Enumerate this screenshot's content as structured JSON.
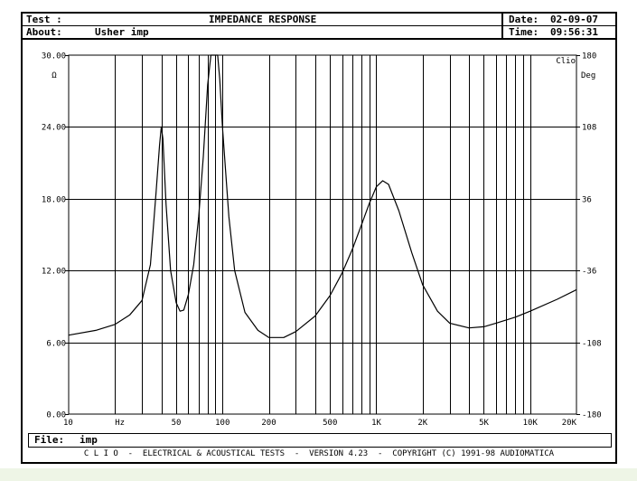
{
  "header": {
    "test_label": "Test :",
    "title": "IMPEDANCE RESPONSE",
    "about_label": "About:",
    "about_value": "Usher imp",
    "date_label": "Date:",
    "date_value": "02-09-07",
    "time_label": "Time:",
    "time_value": "09:56:31"
  },
  "file": {
    "label": "File:",
    "value": "imp"
  },
  "footer": "C L I O  -  ELECTRICAL & ACOUSTICAL TESTS  -  VERSION 4.23  -  COPYRIGHT (C) 1991-98 AUDIOMATICA",
  "chart_data": {
    "type": "line",
    "title": "IMPEDANCE RESPONSE",
    "xscale": "log",
    "xlim": [
      10,
      20000
    ],
    "ylim": [
      0,
      30
    ],
    "ylim_right": [
      -180,
      180
    ],
    "grid": true,
    "brand_label": "Clio",
    "y_unit": "Ω",
    "y2_unit": "Deg",
    "x_unit": "Hz",
    "y_ticks": [
      "0.00",
      "6.00",
      "12.00",
      "18.00",
      "24.00",
      "30.00"
    ],
    "y2_ticks": [
      "-180",
      "-108",
      "-36",
      "36",
      "108",
      "180"
    ],
    "x_ticks": [
      {
        "value": 10,
        "label": "10"
      },
      {
        "value": 50,
        "label": "50"
      },
      {
        "value": 100,
        "label": "100"
      },
      {
        "value": 200,
        "label": "200"
      },
      {
        "value": 500,
        "label": "500"
      },
      {
        "value": 1000,
        "label": "1K"
      },
      {
        "value": 2000,
        "label": "2K"
      },
      {
        "value": 5000,
        "label": "5K"
      },
      {
        "value": 10000,
        "label": "10K"
      },
      {
        "value": 20000,
        "label": "20K"
      }
    ],
    "series": [
      {
        "name": "impedance",
        "x": [
          10,
          15,
          20,
          25,
          30,
          34,
          37,
          39,
          40,
          41,
          43,
          46,
          50,
          53,
          56,
          60,
          65,
          70,
          75,
          80,
          84,
          87,
          90,
          93,
          96,
          100,
          110,
          120,
          140,
          170,
          200,
          250,
          300,
          400,
          500,
          600,
          700,
          800,
          900,
          1000,
          1100,
          1200,
          1400,
          1700,
          2000,
          2500,
          3000,
          4000,
          5000,
          6000,
          8000,
          10000,
          15000,
          20000
        ],
        "y": [
          6.6,
          7.0,
          7.5,
          8.3,
          9.5,
          12.5,
          18.5,
          22.5,
          24.0,
          23.0,
          17.5,
          12.0,
          9.3,
          8.6,
          8.7,
          10.0,
          12.5,
          16.5,
          21.5,
          27.5,
          30.0,
          30.0,
          30.0,
          30.0,
          28.0,
          24.0,
          16.5,
          12.0,
          8.5,
          7.0,
          6.4,
          6.4,
          6.9,
          8.2,
          9.9,
          11.8,
          13.8,
          15.8,
          17.6,
          19.0,
          19.5,
          19.2,
          17.0,
          13.5,
          10.8,
          8.6,
          7.6,
          7.2,
          7.3,
          7.6,
          8.1,
          8.6,
          9.6,
          10.4
        ]
      }
    ]
  }
}
